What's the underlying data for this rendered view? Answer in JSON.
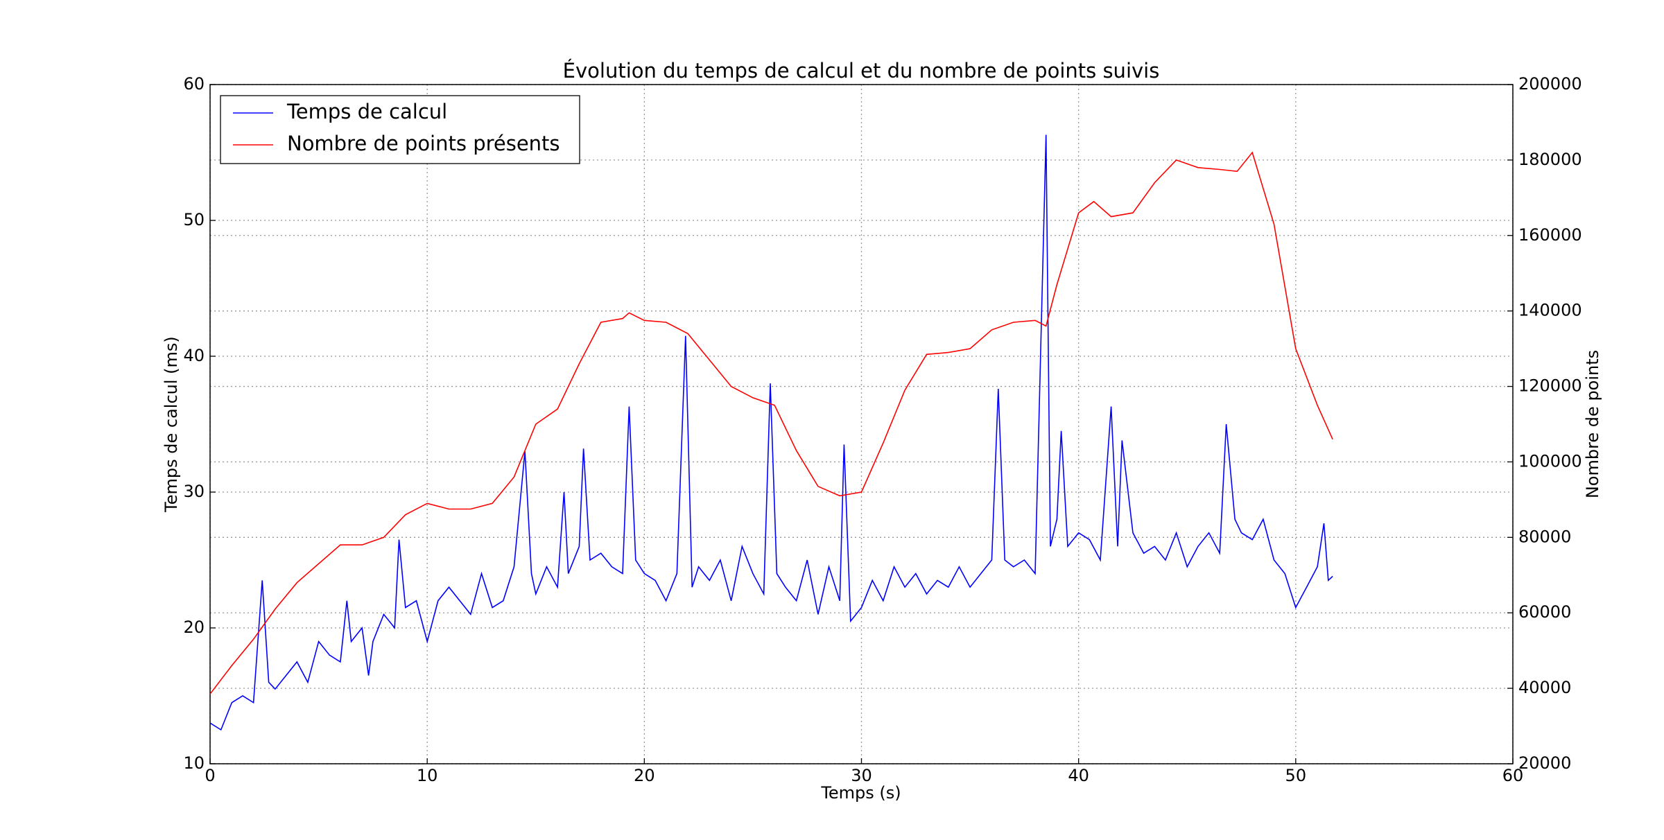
{
  "chart_data": {
    "type": "line",
    "title": "Évolution du temps de calcul et du nombre de points suivis",
    "x_label": "Temps (s)",
    "y_label": "Temps de calcul (ms)",
    "y2_label": "Nombre de points",
    "xlim": [
      0,
      60
    ],
    "xticks": [
      0,
      10,
      20,
      30,
      40,
      50,
      60
    ],
    "ylim": [
      10,
      60
    ],
    "yticks": [
      10,
      20,
      30,
      40,
      50,
      60
    ],
    "y2lim": [
      20000,
      200000
    ],
    "y2ticks": [
      20000,
      40000,
      60000,
      80000,
      100000,
      120000,
      140000,
      160000,
      180000,
      200000
    ],
    "grid": true,
    "legend": "upper left",
    "series": [
      {
        "name": "Temps de calcul",
        "color": "#0000ff",
        "x": [
          0,
          0.5,
          1,
          1.5,
          2,
          2.4,
          2.7,
          3,
          3.5,
          4,
          4.5,
          5,
          5.5,
          6,
          6.3,
          6.5,
          7,
          7.3,
          7.5,
          8,
          8.5,
          8.7,
          9,
          9.5,
          10,
          10.5,
          11,
          11.5,
          12,
          12.5,
          13,
          13.5,
          14,
          14.5,
          14.8,
          15,
          15.5,
          16,
          16.3,
          16.5,
          17,
          17.2,
          17.5,
          18,
          18.5,
          19,
          19.3,
          19.6,
          20,
          20.5,
          21,
          21.5,
          21.9,
          22.2,
          22.5,
          23,
          23.5,
          24,
          24.5,
          25,
          25.5,
          25.8,
          26.1,
          26.5,
          27,
          27.5,
          28,
          28.5,
          29,
          29.2,
          29.5,
          30,
          30.5,
          31,
          31.5,
          32,
          32.5,
          33,
          33.5,
          34,
          34.5,
          35,
          35.5,
          36,
          36.3,
          36.6,
          37,
          37.5,
          38,
          38.5,
          38.7,
          39,
          39.2,
          39.5,
          40,
          40.5,
          41,
          41.5,
          41.8,
          42,
          42.5,
          43,
          43.5,
          44,
          44.5,
          45,
          45.5,
          46,
          46.5,
          46.8,
          47.2,
          47.5,
          48,
          48.5,
          49,
          49.5,
          50,
          50.5,
          51,
          51.3,
          51.5,
          51.7
        ],
        "values": [
          13,
          12.5,
          14.5,
          15,
          14.5,
          23.5,
          16,
          15.5,
          16.5,
          17.5,
          16,
          19,
          18,
          17.5,
          22,
          19,
          20,
          16.5,
          19,
          21,
          20,
          26.5,
          21.5,
          22,
          19,
          22,
          23,
          22,
          21,
          24,
          21.5,
          22,
          24.5,
          33,
          24,
          22.5,
          24.5,
          23,
          30,
          24,
          26,
          33.2,
          25,
          25.5,
          24.5,
          24,
          36.3,
          25,
          24,
          23.5,
          22,
          24,
          41.5,
          23,
          24.5,
          23.5,
          25,
          22,
          26,
          24,
          22.5,
          38,
          24,
          23,
          22,
          25,
          21,
          24.5,
          22,
          33.5,
          20.5,
          21.5,
          23.5,
          22,
          24.5,
          23,
          24,
          22.5,
          23.5,
          23,
          24.5,
          23,
          24,
          25,
          37.6,
          25,
          24.5,
          25,
          24,
          56.3,
          26,
          28,
          34.5,
          26,
          27,
          26.5,
          25,
          36.3,
          26,
          33.8,
          27,
          25.5,
          26,
          25,
          27,
          24.5,
          26,
          27,
          25.5,
          35,
          28,
          27,
          26.5,
          28,
          25,
          24,
          21.5,
          23,
          24.5,
          27.7,
          23.5,
          23.8
        ]
      },
      {
        "name": "Nombre de points présents",
        "color": "#ff0000",
        "axis": "y2",
        "x": [
          0,
          1,
          2,
          3,
          4,
          5,
          6,
          7,
          8,
          9,
          10,
          11,
          12,
          13,
          14,
          15,
          16,
          17,
          18,
          19,
          19.3,
          20,
          21,
          22,
          23,
          24,
          25,
          26,
          27,
          28,
          29,
          30,
          31,
          32,
          33,
          34,
          35,
          36,
          37,
          38,
          38.5,
          39,
          40,
          40.7,
          41.5,
          42.5,
          43.5,
          44.5,
          45.5,
          46.5,
          47.3,
          48,
          49,
          50,
          51,
          51.7
        ],
        "values": [
          38500,
          46000,
          53000,
          61000,
          68000,
          73000,
          78000,
          78000,
          80000,
          86000,
          89000,
          87500,
          87500,
          89000,
          96000,
          110000,
          114000,
          126000,
          137000,
          138000,
          139500,
          137500,
          137000,
          134000,
          127000,
          120000,
          117000,
          115000,
          103000,
          93500,
          91000,
          92000,
          105000,
          119000,
          128500,
          129000,
          130000,
          135000,
          137000,
          137500,
          136000,
          147000,
          166000,
          169000,
          165000,
          166000,
          174000,
          180000,
          178000,
          177500,
          177000,
          182000,
          163000,
          130000,
          115000,
          106000
        ]
      }
    ]
  }
}
